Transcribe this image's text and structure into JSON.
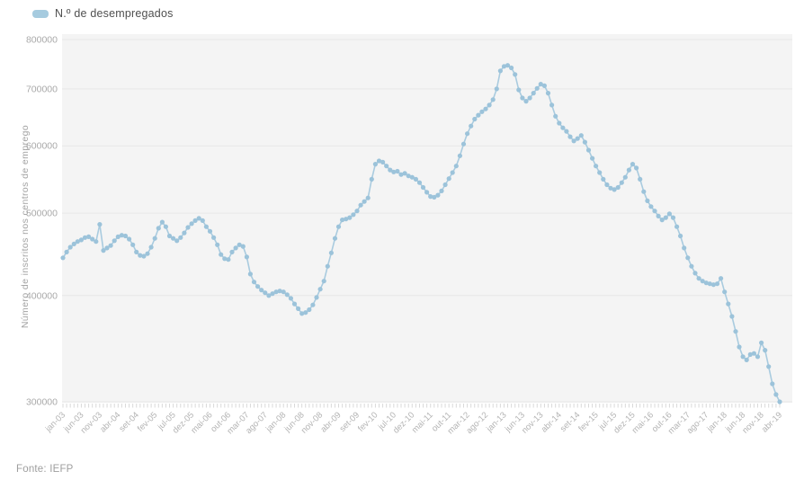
{
  "legend": {
    "label": "N.º de desempregados",
    "swatch_color": "#a6cbdf"
  },
  "footer": {
    "source": "Fonte: IEFP"
  },
  "colors": {
    "plot_background": "#f4f4f4",
    "gridline": "#e7e7e7",
    "series_line": "#a9cbdf",
    "series_dot": "#9cc3da",
    "y_tick_label": "#a9a9a9",
    "x_tick_label": "#b3b3b3",
    "tick_mark": "#d9d9d9"
  },
  "chart_data": {
    "type": "line",
    "title": "",
    "series_name": "N.º de desempregados",
    "xlabel": "",
    "ylabel": "Número de inscritos nos centros de emprego",
    "y_scale": "log",
    "ylim": [
      300000,
      800000
    ],
    "y_ticks": [
      800000,
      700000,
      600000,
      500000,
      400000,
      300000
    ],
    "grid": true,
    "legend_position": "top-left",
    "frequency": "monthly",
    "x_start": "jan-03",
    "x_end": "abr-19",
    "x_tick_every": 5,
    "x_tick_labels": [
      "jan-03",
      "jun-03",
      "nov-03",
      "abr-04",
      "set-04",
      "fev-05",
      "jul-05",
      "dez-05",
      "mai-06",
      "out-06",
      "mar-07",
      "ago-07",
      "jan-08",
      "jun-08",
      "nov-08",
      "abr-09",
      "set-09",
      "fev-10",
      "jul-10",
      "dez-10",
      "mai-11",
      "out-11",
      "mar-12",
      "ago-12",
      "jan-13",
      "jun-13",
      "nov-13",
      "abr-14",
      "set-14",
      "fev-15",
      "jul-15",
      "dez-15",
      "mai-16",
      "out-16",
      "mar-17",
      "ago-17",
      "jan-18",
      "jun-18",
      "nov-18",
      "abr-19"
    ],
    "values": [
      443000,
      450000,
      456000,
      460000,
      463000,
      465000,
      468000,
      469000,
      466000,
      463000,
      485000,
      452000,
      455000,
      458000,
      464000,
      469000,
      471000,
      470000,
      466000,
      459000,
      450000,
      446000,
      445000,
      448000,
      456000,
      467000,
      480000,
      488000,
      482000,
      470000,
      467000,
      464000,
      468000,
      474000,
      481000,
      486000,
      490000,
      493000,
      490000,
      482000,
      476000,
      468000,
      459000,
      447000,
      442000,
      441000,
      450000,
      455000,
      459000,
      457000,
      444000,
      424000,
      415000,
      410000,
      406000,
      403000,
      400000,
      402000,
      404000,
      405000,
      404000,
      401000,
      397000,
      391000,
      386000,
      381000,
      382000,
      385000,
      390000,
      398000,
      407000,
      416000,
      433000,
      449000,
      467000,
      482000,
      491000,
      492000,
      494000,
      498000,
      503000,
      511000,
      516000,
      521000,
      548000,
      571000,
      576000,
      574000,
      568000,
      562000,
      559000,
      560000,
      555000,
      557000,
      553000,
      551000,
      548000,
      543000,
      536000,
      529000,
      523000,
      522000,
      525000,
      531000,
      540000,
      549000,
      558000,
      568000,
      584000,
      603000,
      620000,
      633000,
      645000,
      652000,
      658000,
      663000,
      670000,
      680000,
      700000,
      735000,
      744000,
      746000,
      741000,
      728000,
      698000,
      683000,
      677000,
      683000,
      692000,
      701000,
      709000,
      706000,
      692000,
      670000,
      650000,
      638000,
      630000,
      624000,
      615000,
      608000,
      612000,
      617000,
      606000,
      593000,
      580000,
      568000,
      558000,
      548000,
      540000,
      535000,
      533000,
      536000,
      543000,
      551000,
      562000,
      571000,
      565000,
      548000,
      530000,
      517000,
      509000,
      503000,
      496000,
      491000,
      494000,
      499000,
      494000,
      482000,
      470000,
      455000,
      443000,
      433000,
      425000,
      419000,
      416000,
      414000,
      413000,
      412000,
      413000,
      419000,
      404000,
      391000,
      378000,
      363000,
      348000,
      339000,
      336000,
      341000,
      342000,
      339000,
      352000,
      345000,
      330000,
      315000,
      306000,
      300000
    ]
  }
}
